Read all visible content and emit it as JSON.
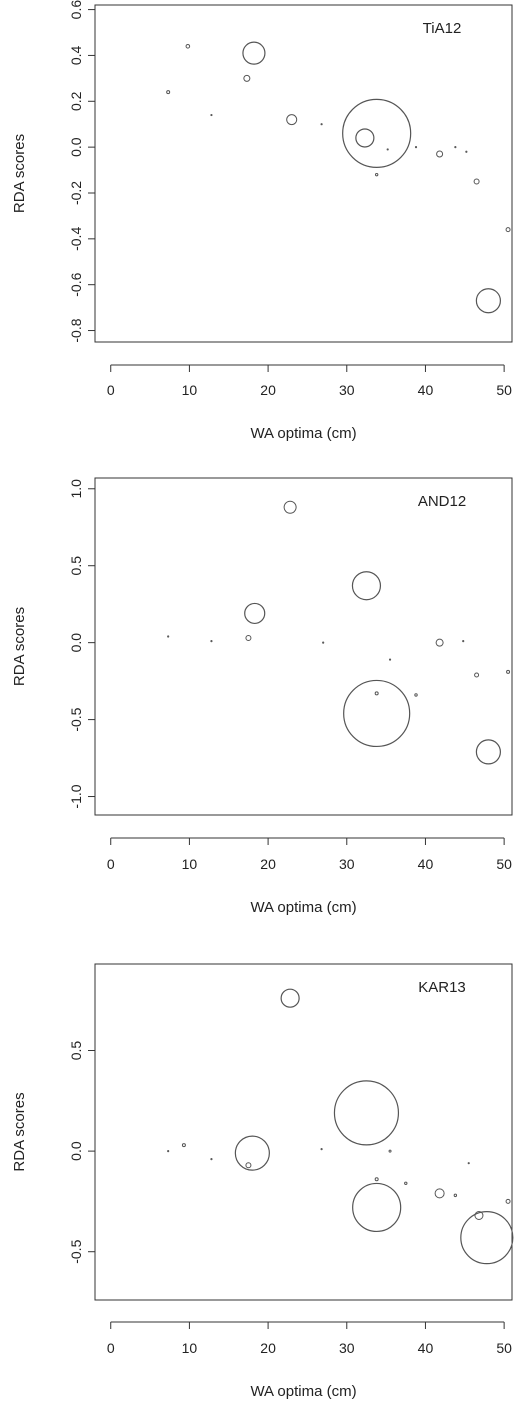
{
  "chart_data": [
    {
      "type": "scatter",
      "title": "",
      "panel_label": "TiA12",
      "xlabel": "WA optima (cm)",
      "ylabel": "RDA scores",
      "xlim": [
        -2,
        51
      ],
      "ylim": [
        -0.85,
        0.62
      ],
      "xticks": [
        "0",
        "10",
        "20",
        "30",
        "40",
        "50"
      ],
      "xtick_values": [
        0,
        10,
        20,
        30,
        40,
        50
      ],
      "yticks": [
        "-0.8",
        "-0.6",
        "-0.4",
        "-0.2",
        "0.0",
        "0.2",
        "0.4",
        "0.6"
      ],
      "ytick_values": [
        -0.8,
        -0.6,
        -0.4,
        -0.2,
        0.0,
        0.2,
        0.4,
        0.6
      ],
      "grid": false,
      "marker": "open circle scaled by abundance",
      "points": [
        {
          "x": 7.3,
          "y": 0.24,
          "r": 1.5
        },
        {
          "x": 9.8,
          "y": 0.44,
          "r": 1.8
        },
        {
          "x": 12.8,
          "y": 0.14,
          "r": 0.5
        },
        {
          "x": 17.3,
          "y": 0.3,
          "r": 3
        },
        {
          "x": 18.2,
          "y": 0.41,
          "r": 11
        },
        {
          "x": 23.0,
          "y": 0.12,
          "r": 5
        },
        {
          "x": 26.8,
          "y": 0.1,
          "r": 0.5
        },
        {
          "x": 32.3,
          "y": 0.04,
          "r": 9
        },
        {
          "x": 33.8,
          "y": 0.06,
          "r": 34
        },
        {
          "x": 33.8,
          "y": -0.12,
          "r": 1.2
        },
        {
          "x": 35.2,
          "y": -0.01,
          "r": 0.5
        },
        {
          "x": 38.8,
          "y": 0.0,
          "r": 0.5
        },
        {
          "x": 41.8,
          "y": -0.03,
          "r": 3
        },
        {
          "x": 43.8,
          "y": 0.0,
          "r": 0.5
        },
        {
          "x": 45.2,
          "y": -0.02,
          "r": 0.5
        },
        {
          "x": 46.5,
          "y": -0.15,
          "r": 2.5
        },
        {
          "x": 48.0,
          "y": -0.67,
          "r": 12
        },
        {
          "x": 50.5,
          "y": -0.36,
          "r": 2
        }
      ]
    },
    {
      "type": "scatter",
      "title": "",
      "panel_label": "AND12",
      "xlabel": "WA optima (cm)",
      "ylabel": "RDA scores",
      "xlim": [
        -2,
        51
      ],
      "ylim": [
        -1.12,
        1.07
      ],
      "xticks": [
        "0",
        "10",
        "20",
        "30",
        "40",
        "50"
      ],
      "xtick_values": [
        0,
        10,
        20,
        30,
        40,
        50
      ],
      "yticks": [
        "-1.0",
        "-0.5",
        "0.0",
        "0.5",
        "1.0"
      ],
      "ytick_values": [
        -1.0,
        -0.5,
        0.0,
        0.5,
        1.0
      ],
      "grid": false,
      "marker": "open circle scaled by abundance",
      "points": [
        {
          "x": 7.3,
          "y": 0.04,
          "r": 0.5
        },
        {
          "x": 12.8,
          "y": 0.01,
          "r": 0.5
        },
        {
          "x": 17.5,
          "y": 0.03,
          "r": 2.5
        },
        {
          "x": 18.3,
          "y": 0.19,
          "r": 10
        },
        {
          "x": 22.8,
          "y": 0.88,
          "r": 6
        },
        {
          "x": 27.0,
          "y": 0.0,
          "r": 0.5
        },
        {
          "x": 32.5,
          "y": 0.37,
          "r": 14
        },
        {
          "x": 33.8,
          "y": -0.46,
          "r": 33
        },
        {
          "x": 33.8,
          "y": -0.33,
          "r": 1.5
        },
        {
          "x": 35.5,
          "y": -0.11,
          "r": 0.5
        },
        {
          "x": 38.8,
          "y": -0.34,
          "r": 1.2
        },
        {
          "x": 41.8,
          "y": 0.0,
          "r": 3.5
        },
        {
          "x": 44.8,
          "y": 0.01,
          "r": 0.5
        },
        {
          "x": 46.5,
          "y": -0.21,
          "r": 2
        },
        {
          "x": 48.0,
          "y": -0.71,
          "r": 12
        },
        {
          "x": 50.5,
          "y": -0.19,
          "r": 1.5
        }
      ]
    },
    {
      "type": "scatter",
      "title": "",
      "panel_label": "KAR13",
      "xlabel": "WA optima (cm)",
      "ylabel": "RDA scores",
      "xlim": [
        -2,
        51
      ],
      "ylim": [
        -0.74,
        0.93
      ],
      "xticks": [
        "0",
        "10",
        "20",
        "30",
        "40",
        "50"
      ],
      "xtick_values": [
        0,
        10,
        20,
        30,
        40,
        50
      ],
      "yticks": [
        "-0.5",
        "0.0",
        "0.5"
      ],
      "ytick_values": [
        -0.5,
        0.0,
        0.5
      ],
      "grid": false,
      "marker": "open circle scaled by abundance",
      "points": [
        {
          "x": 7.3,
          "y": 0.0,
          "r": 0.5
        },
        {
          "x": 9.3,
          "y": 0.03,
          "r": 1.5
        },
        {
          "x": 12.8,
          "y": -0.04,
          "r": 0.5
        },
        {
          "x": 17.5,
          "y": -0.07,
          "r": 2.5
        },
        {
          "x": 18.0,
          "y": -0.01,
          "r": 17
        },
        {
          "x": 22.8,
          "y": 0.76,
          "r": 9
        },
        {
          "x": 26.8,
          "y": 0.01,
          "r": 0.5
        },
        {
          "x": 32.5,
          "y": 0.19,
          "r": 32
        },
        {
          "x": 33.8,
          "y": -0.14,
          "r": 1.5
        },
        {
          "x": 33.8,
          "y": -0.28,
          "r": 24
        },
        {
          "x": 35.5,
          "y": 0.0,
          "r": 1
        },
        {
          "x": 37.5,
          "y": -0.16,
          "r": 1.2
        },
        {
          "x": 41.8,
          "y": -0.21,
          "r": 4.5
        },
        {
          "x": 43.8,
          "y": -0.22,
          "r": 1.2
        },
        {
          "x": 45.5,
          "y": -0.06,
          "r": 0.5
        },
        {
          "x": 46.8,
          "y": -0.32,
          "r": 4
        },
        {
          "x": 47.8,
          "y": -0.43,
          "r": 26
        },
        {
          "x": 50.5,
          "y": -0.25,
          "r": 2
        }
      ]
    }
  ]
}
